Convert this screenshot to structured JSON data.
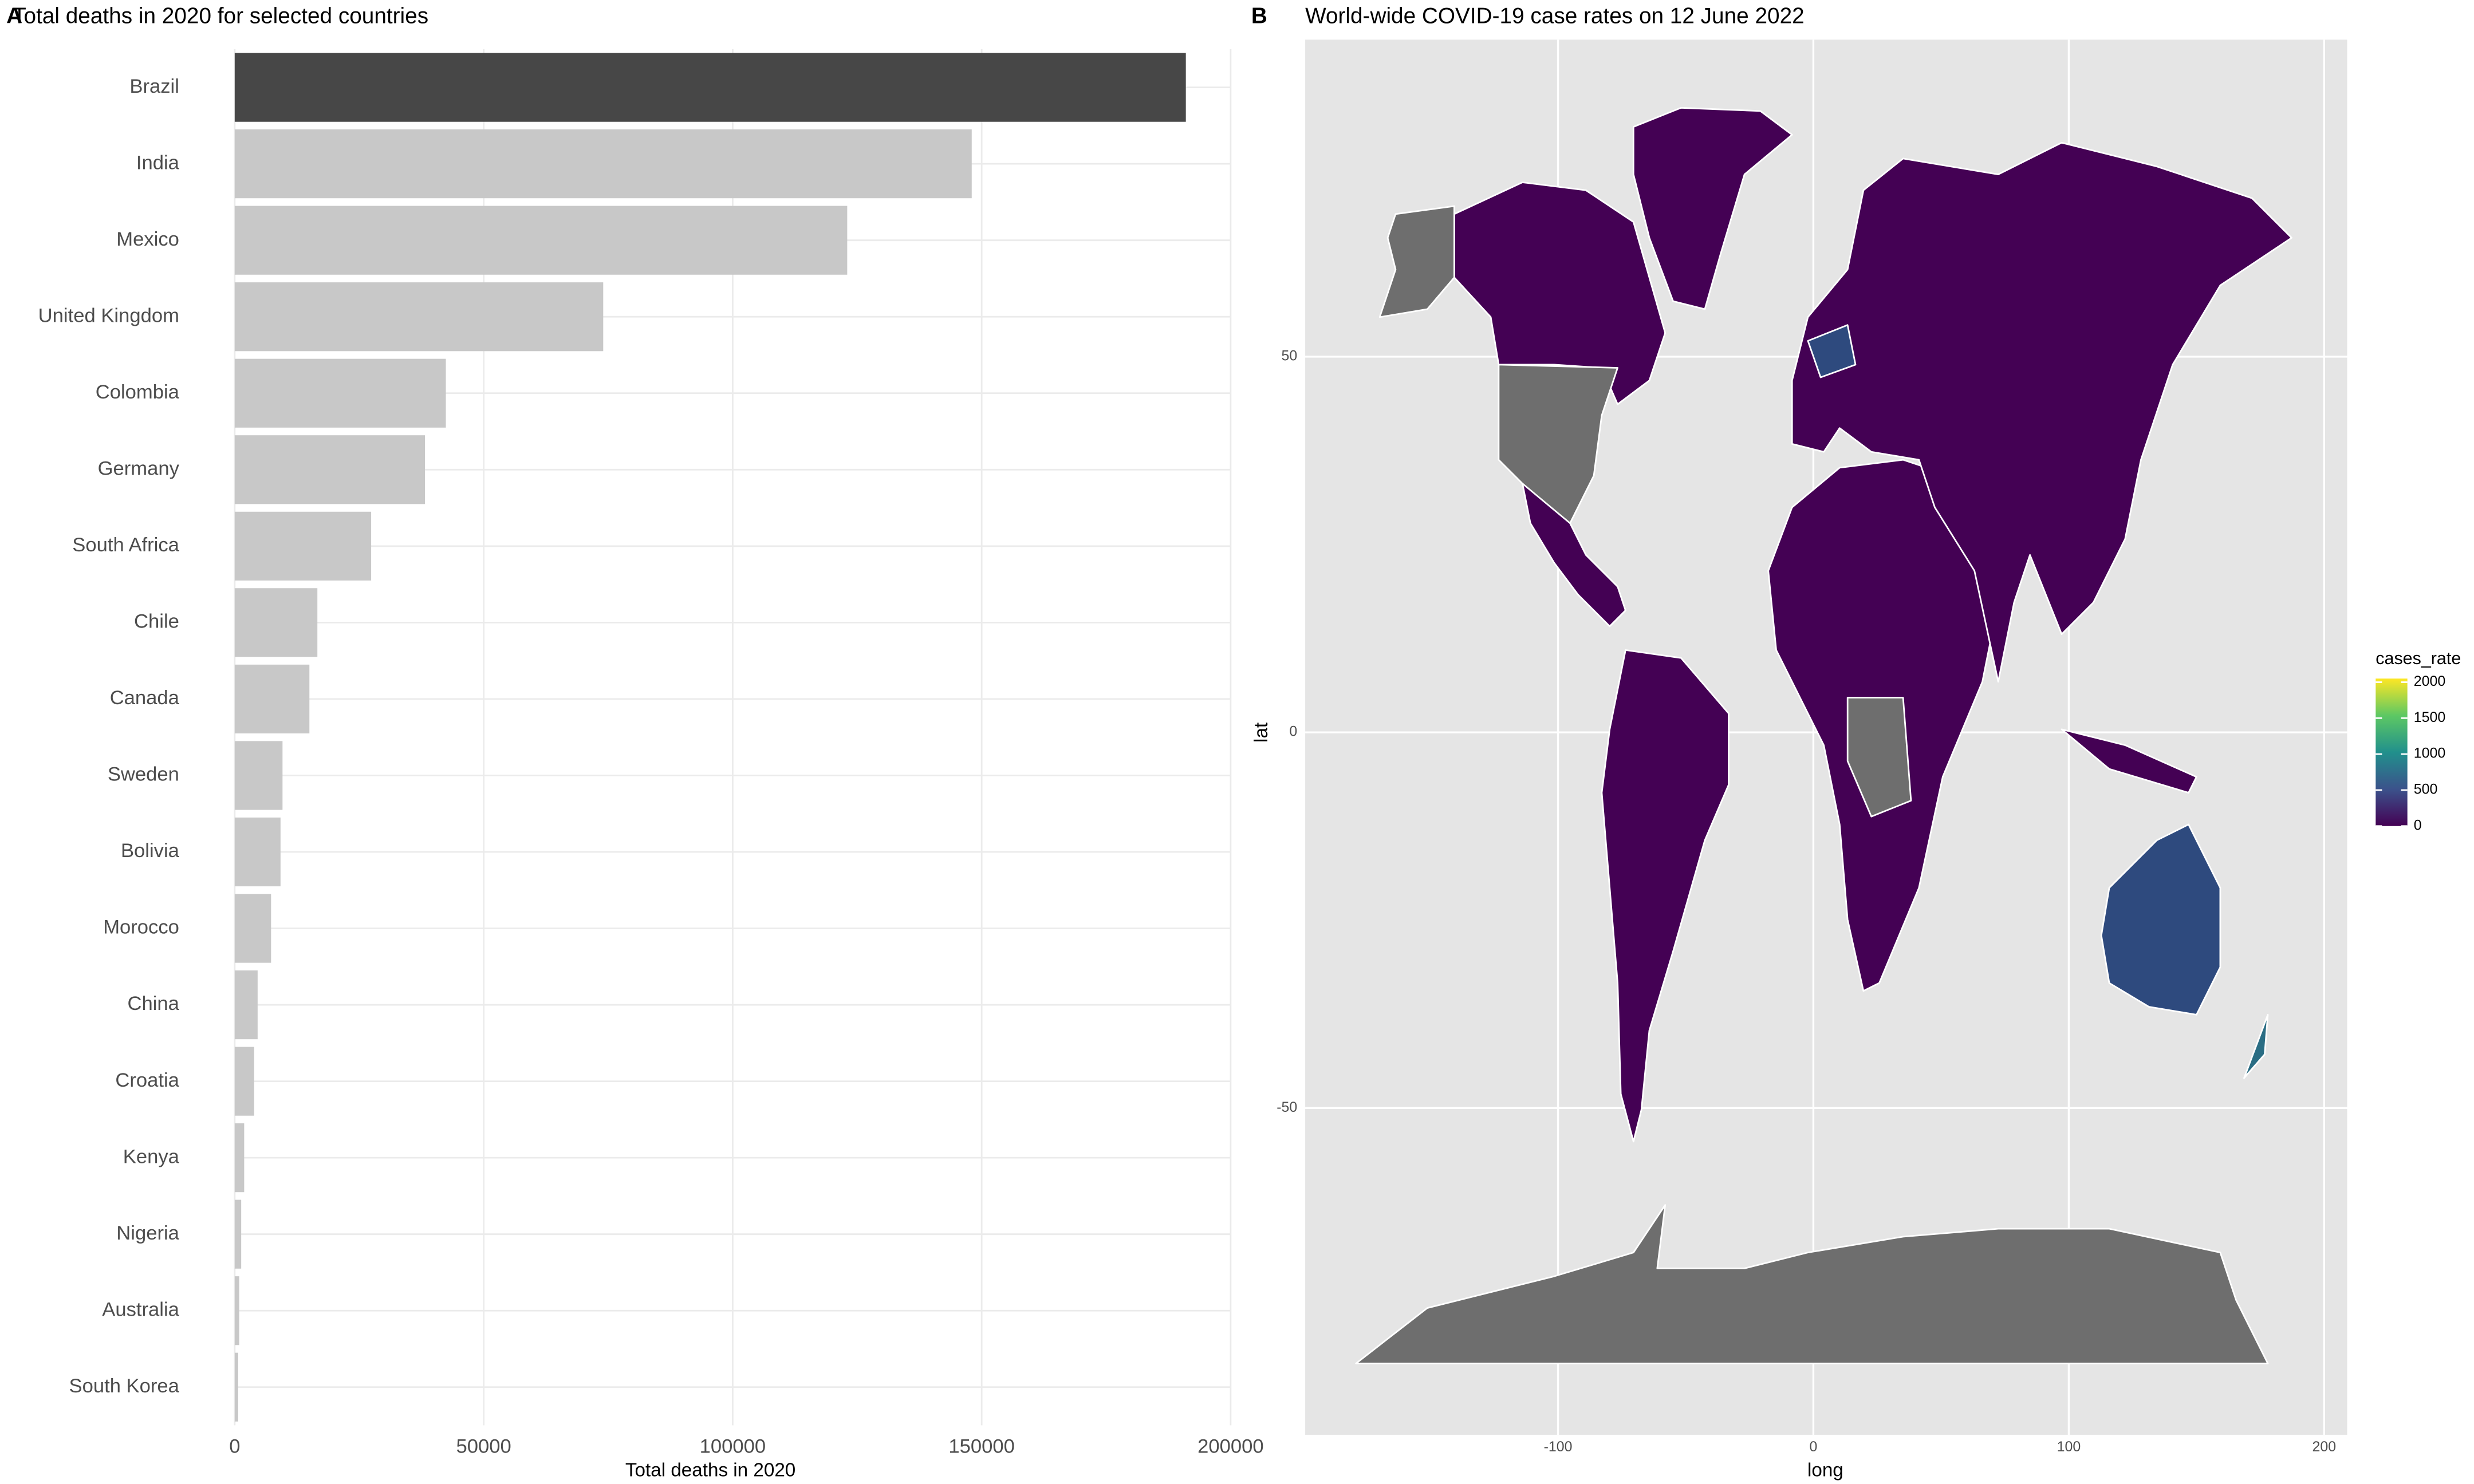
{
  "chart_data": [
    {
      "type": "bar",
      "orientation": "horizontal",
      "panel_label": "A",
      "title": "Total deaths in 2020 for selected countries",
      "xlabel": "Total deaths in 2020",
      "categories": [
        "Brazil",
        "India",
        "Mexico",
        "United Kingdom",
        "Colombia",
        "Germany",
        "South Africa",
        "Chile",
        "Canada",
        "Sweden",
        "Bolivia",
        "Morocco",
        "China",
        "Croatia",
        "Kenya",
        "Nigeria",
        "Australia",
        "South Korea"
      ],
      "values": [
        191000,
        148000,
        123000,
        74000,
        42400,
        38200,
        27400,
        16600,
        15000,
        9600,
        9200,
        7300,
        4600,
        3900,
        1900,
        1300,
        900,
        700
      ],
      "colors": [
        "#474747",
        "#c8c8c8",
        "#c8c8c8",
        "#c8c8c8",
        "#c8c8c8",
        "#c8c8c8",
        "#c8c8c8",
        "#c8c8c8",
        "#c8c8c8",
        "#c8c8c8",
        "#c8c8c8",
        "#c8c8c8",
        "#c8c8c8",
        "#c8c8c8",
        "#c8c8c8",
        "#c8c8c8",
        "#c8c8c8",
        "#c8c8c8"
      ],
      "xlim": [
        0,
        200000
      ],
      "xticks": [
        0,
        50000,
        100000,
        150000,
        200000
      ],
      "grid": true
    },
    {
      "type": "map",
      "panel_label": "B",
      "title": "World-wide COVID-19 case rates on 12 June 2022",
      "xlabel": "long",
      "ylabel": "lat",
      "xlim": [
        -199,
        209
      ],
      "ylim": [
        -93.5,
        92.2
      ],
      "xticks": [
        -100,
        0,
        100,
        200
      ],
      "yticks": [
        -50,
        0,
        50
      ],
      "grid": true,
      "legend": {
        "title": "cases_rate",
        "position": "right",
        "lim": [
          0,
          2050
        ],
        "ticks": [
          0,
          500,
          1000,
          1500,
          2000
        ],
        "colors": [
          "#440154",
          "#3b528b",
          "#21908c",
          "#5dc863",
          "#fde725"
        ]
      }
    }
  ]
}
